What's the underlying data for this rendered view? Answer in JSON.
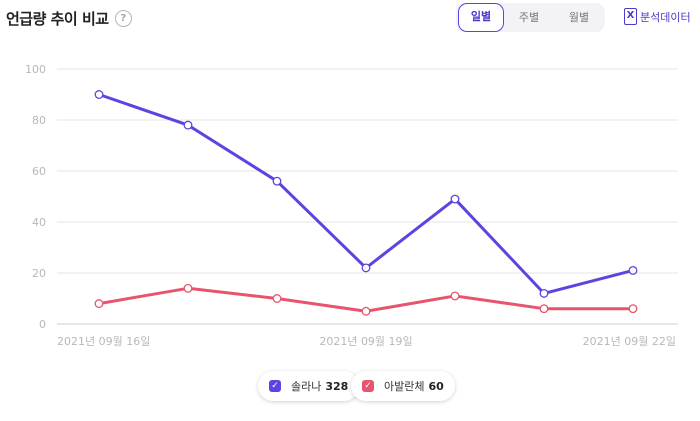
{
  "header": {
    "title": "언급량 추이 비교",
    "help_icon": "?"
  },
  "period_tabs": [
    {
      "label": "일별",
      "active": true
    },
    {
      "label": "주별",
      "active": false
    },
    {
      "label": "월별",
      "active": false
    }
  ],
  "export": {
    "label": "분석데이터",
    "icon": "excel-icon"
  },
  "colors": {
    "series1": "#5b45e0",
    "series2": "#e8546e",
    "grid": "#e6e6e6",
    "tick": "#b8b8b8"
  },
  "chart_data": {
    "type": "line",
    "x": [
      "2021-09-16",
      "2021-09-17",
      "2021-09-18",
      "2021-09-19",
      "2021-09-20",
      "2021-09-21",
      "2021-09-22"
    ],
    "x_tick_labels": [
      {
        "index": 0,
        "label": "2021년 09월 16일"
      },
      {
        "index": 3,
        "label": "2021년 09월 19일"
      },
      {
        "index": 6,
        "label": "2021년 09월 22일"
      }
    ],
    "ylim": [
      0,
      100
    ],
    "yticks": [
      0,
      20,
      40,
      60,
      80,
      100
    ],
    "grid": true,
    "series": [
      {
        "name": "솔라나",
        "values": [
          90,
          78,
          56,
          22,
          49,
          12,
          21
        ]
      },
      {
        "name": "아발란체",
        "values": [
          8,
          14,
          10,
          5,
          11,
          6,
          6
        ]
      }
    ]
  },
  "legend": [
    {
      "name": "솔라나",
      "count": "328"
    },
    {
      "name": "아발란체",
      "count": "60"
    }
  ]
}
